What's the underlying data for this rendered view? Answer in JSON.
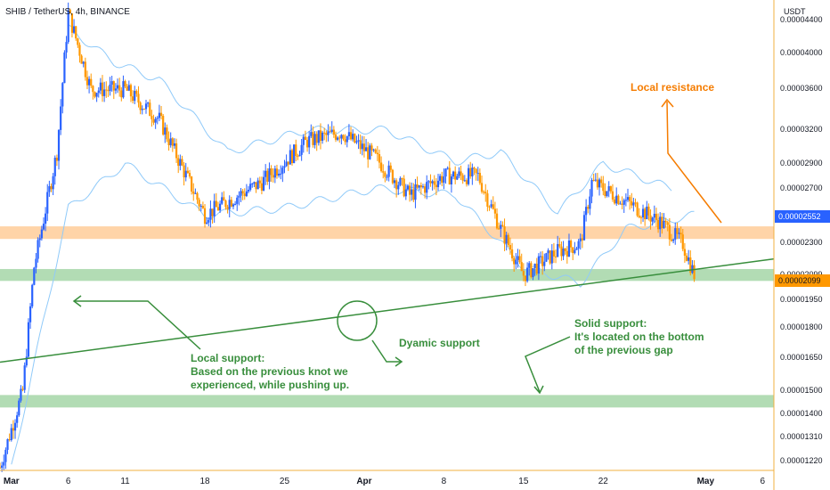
{
  "header": {
    "symbol_title": "SHIB / TetherUS, 4h, BINANCE"
  },
  "price_axis": {
    "unit": "USDT",
    "ticks": [
      "0.00004400",
      "0.00004000",
      "0.00003600",
      "0.00003200",
      "0.00002900",
      "0.00002700",
      "0.00002500",
      "0.00002300",
      "0.00002099",
      "0.00001950",
      "0.00001800",
      "0.00001650",
      "0.00001500",
      "0.00001400",
      "0.00001310",
      "0.00001220"
    ],
    "current_price_tag": "0.00002552",
    "support_price_tag": "0.00002099"
  },
  "time_axis": {
    "labels": [
      {
        "text": "Mar",
        "major": true
      },
      {
        "text": "6",
        "major": false
      },
      {
        "text": "11",
        "major": false
      },
      {
        "text": "18",
        "major": false
      },
      {
        "text": "25",
        "major": false
      },
      {
        "text": "Apr",
        "major": true
      },
      {
        "text": "8",
        "major": false
      },
      {
        "text": "15",
        "major": false
      },
      {
        "text": "22",
        "major": false
      },
      {
        "text": "May",
        "major": true
      },
      {
        "text": "6",
        "major": false
      }
    ]
  },
  "annotations": {
    "local_resistance": "Local resistance",
    "dynamic_support": "Dyamic support",
    "local_support": [
      "Local support:",
      "Based on the previous knot we",
      "experienced, while pushing up."
    ],
    "solid_support": [
      "Solid support:",
      "It's located on the bottom",
      "of the previous gap"
    ]
  },
  "colors": {
    "up_candle": "#2962ff",
    "down_candle": "#ff9800",
    "bollinger": "#90caf9",
    "resistance_zone": "#ffcc99",
    "support_zone": "#a5d6a7",
    "trendline": "#388e3c",
    "annotation_orange": "#f57c00",
    "annotation_green": "#388e3c",
    "current_tag": "#2962ff",
    "support_tag": "#ff9800"
  },
  "chart_data": {
    "type": "candlestick",
    "symbol": "SHIB / TetherUS",
    "timeframe": "4h",
    "exchange": "BINANCE",
    "x_range": [
      "Feb 28",
      "May 7"
    ],
    "y_unit": "USDT",
    "y_scale": "log",
    "y_range": [
      1.19e-05,
      4.55e-05
    ],
    "current_price": 2.552e-05,
    "last_close": 2.099e-05,
    "key_points": [
      {
        "date": "Feb 28",
        "close": 1.2e-05
      },
      {
        "date": "Mar 2",
        "close": 1.5e-05
      },
      {
        "date": "Mar 3",
        "close": 2.15e-05
      },
      {
        "date": "Mar 5",
        "close": 3e-05
      },
      {
        "date": "Mar 6",
        "close": 4.5e-05
      },
      {
        "date": "Mar 8",
        "close": 3.6e-05
      },
      {
        "date": "Mar 11",
        "close": 3.6e-05
      },
      {
        "date": "Mar 14",
        "close": 3.3e-05
      },
      {
        "date": "Mar 18",
        "close": 2.5e-05
      },
      {
        "date": "Mar 20",
        "close": 2.6e-05
      },
      {
        "date": "Mar 23",
        "close": 2.75e-05
      },
      {
        "date": "Mar 27",
        "close": 3.1e-05
      },
      {
        "date": "Mar 30",
        "close": 3.18e-05
      },
      {
        "date": "Apr 2",
        "close": 2.95e-05
      },
      {
        "date": "Apr 5",
        "close": 2.65e-05
      },
      {
        "date": "Apr 8",
        "close": 2.8e-05
      },
      {
        "date": "Apr 11",
        "close": 2.8e-05
      },
      {
        "date": "Apr 13",
        "close": 2.4e-05
      },
      {
        "date": "Apr 15",
        "close": 2.1e-05
      },
      {
        "date": "Apr 18",
        "close": 2.25e-05
      },
      {
        "date": "Apr 20",
        "close": 2.3e-05
      },
      {
        "date": "Apr 21",
        "close": 2.75e-05
      },
      {
        "date": "Apr 24",
        "close": 2.6e-05
      },
      {
        "date": "Apr 27",
        "close": 2.45e-05
      },
      {
        "date": "Apr 29",
        "close": 2.3e-05
      },
      {
        "date": "Apr 30",
        "close": 2.1e-05
      }
    ],
    "bollinger_upper": [
      {
        "date": "Mar 6",
        "value": 4.3e-05
      },
      {
        "date": "Mar 10",
        "value": 3.9e-05
      },
      {
        "date": "Mar 14",
        "value": 3.7e-05
      },
      {
        "date": "Mar 20",
        "value": 3e-05
      },
      {
        "date": "Mar 27",
        "value": 3.2e-05
      },
      {
        "date": "Apr 3",
        "value": 3.2e-05
      },
      {
        "date": "Apr 9",
        "value": 2.92e-05
      },
      {
        "date": "Apr 13",
        "value": 3e-05
      },
      {
        "date": "Apr 18",
        "value": 2.52e-05
      },
      {
        "date": "Apr 22",
        "value": 2.9e-05
      },
      {
        "date": "Apr 28",
        "value": 2.7e-05
      }
    ],
    "bollinger_lower": [
      {
        "date": "Mar 1",
        "value": 1.2e-05
      },
      {
        "date": "Mar 6",
        "value": 2.55e-05
      },
      {
        "date": "Mar 11",
        "value": 2.9e-05
      },
      {
        "date": "Mar 18",
        "value": 2.5e-05
      },
      {
        "date": "Mar 25",
        "value": 2.55e-05
      },
      {
        "date": "Apr 2",
        "value": 2.7e-05
      },
      {
        "date": "Apr 9",
        "value": 2.65e-05
      },
      {
        "date": "Apr 15",
        "value": 2.15e-05
      },
      {
        "date": "Apr 20",
        "value": 2.05e-05
      },
      {
        "date": "Apr 24",
        "value": 2.4e-05
      },
      {
        "date": "Apr 30",
        "value": 2.5e-05
      }
    ],
    "zones": [
      {
        "name": "Local resistance",
        "low": 2.35e-05,
        "high": 2.4e-05
      },
      {
        "name": "Solid support",
        "low": 2.08e-05,
        "high": 2.12e-05
      },
      {
        "name": "Local support",
        "low": 1.44e-05,
        "high": 1.47e-05
      }
    ],
    "trendline": {
      "name": "Dyamic support",
      "from": {
        "date": "Feb 28",
        "value": 1.63e-05
      },
      "to": {
        "date": "May 7",
        "value": 2.2e-05
      }
    }
  }
}
